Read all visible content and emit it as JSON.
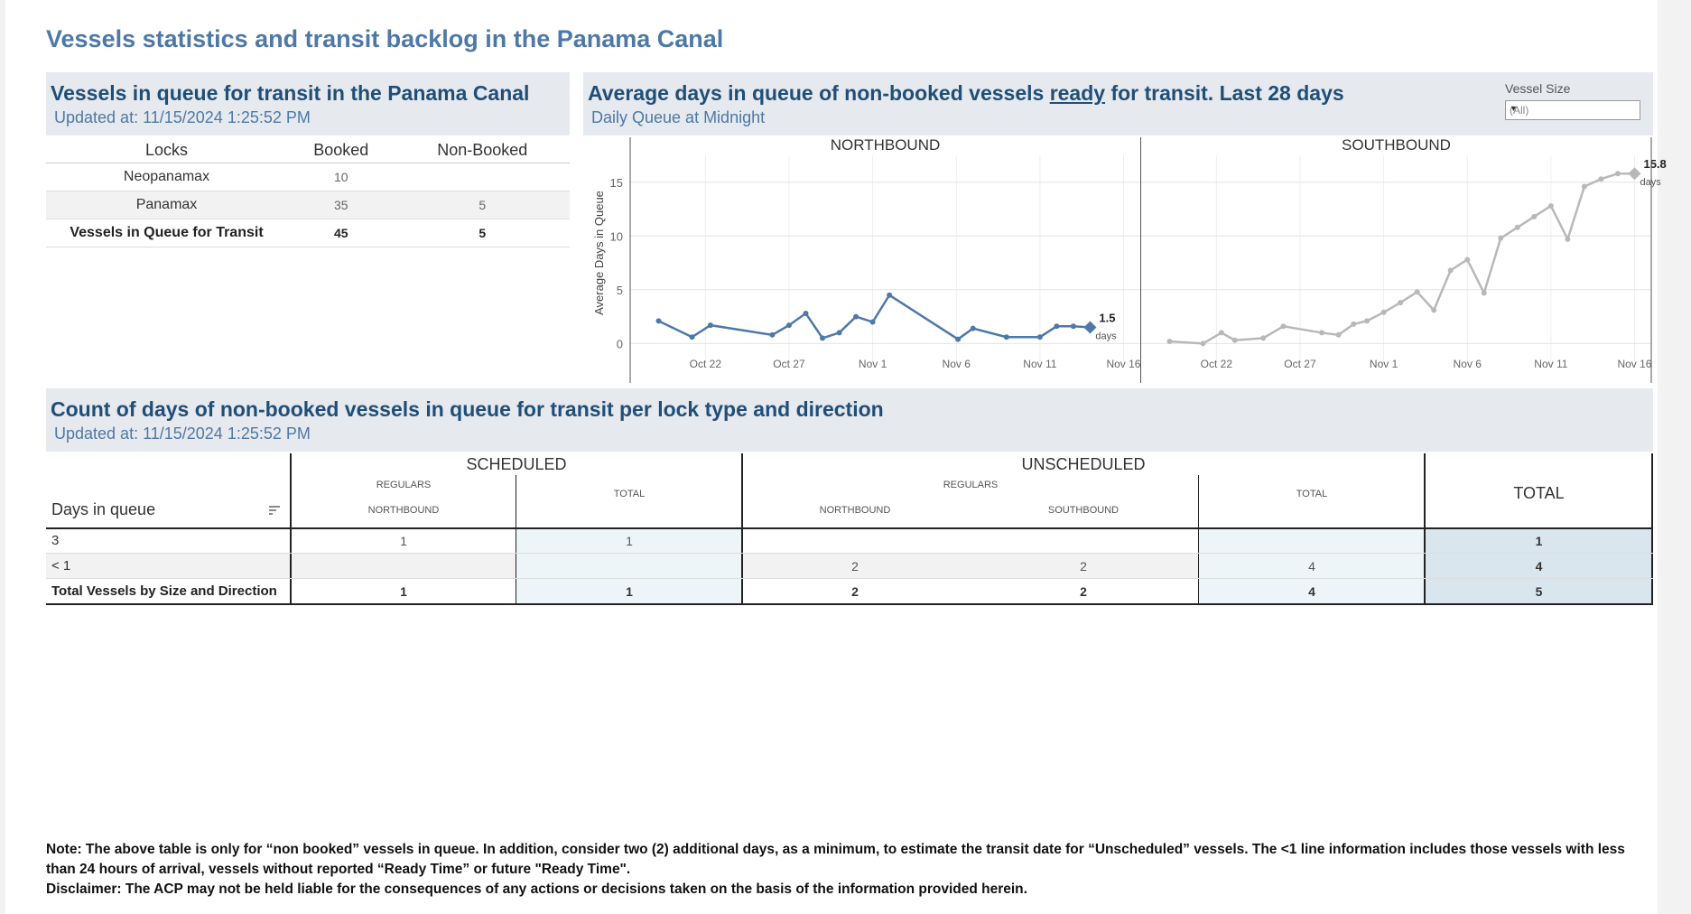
{
  "title": "Vessels statistics and transit backlog in the Panama Canal",
  "queue_panel": {
    "title": "Vessels in queue for transit in the Panama Canal",
    "updated": "Updated at:  11/15/2024 1:25:52 PM",
    "headers": [
      "Locks",
      "Booked",
      "Non-Booked"
    ],
    "rows": [
      {
        "lock": "Neopanamax",
        "booked": "10",
        "non_booked": ""
      },
      {
        "lock": "Panamax",
        "booked": "35",
        "non_booked": "5"
      },
      {
        "lock": "Vessels in Queue for Transit",
        "booked": "45",
        "non_booked": "5"
      }
    ]
  },
  "days_panel": {
    "title_before": "Average days in queue of non-booked vessels ",
    "title_underlined": "ready",
    "title_after": " for transit. Last 28 days",
    "subtitle": "Daily Queue at Midnight",
    "filter_label": "Vessel Size",
    "filter_value": "(All)"
  },
  "chart_data": {
    "type": "line",
    "ylabel": "Average Days in Queue",
    "yticks": [
      "0",
      "5",
      "10",
      "15"
    ],
    "ylim": [
      -3.5,
      17.5
    ],
    "xticks": [
      "Oct 22",
      "Oct 27",
      "Nov 1",
      "Nov 6",
      "Nov 11",
      "Nov 16"
    ],
    "xtick_day": [
      22,
      27,
      32,
      37,
      42,
      47
    ],
    "xlim": [
      17.5,
      48
    ],
    "grid": true,
    "panels": [
      {
        "name": "NORTHBOUND",
        "color": "#4e79a7",
        "x": [
          19.2,
          21.2,
          22.3,
          26,
          27,
          28,
          29,
          30,
          31,
          32,
          33,
          37.1,
          38,
          40,
          42,
          43,
          44,
          45
        ],
        "y": [
          2.1,
          0.6,
          1.7,
          0.8,
          1.7,
          2.8,
          0.5,
          1.0,
          2.5,
          2.0,
          4.5,
          0.4,
          1.4,
          0.6,
          0.6,
          1.6,
          1.6,
          1.5
        ],
        "last_label": "1.5",
        "unit": "days"
      },
      {
        "name": "SOUTHBOUND",
        "color": "#b8b8b8",
        "x": [
          19.2,
          21.2,
          22.3,
          23.1,
          24.8,
          26,
          28.3,
          29.3,
          30.2,
          31,
          32,
          33,
          34,
          35,
          36,
          37,
          38,
          39,
          40,
          41,
          42,
          43,
          44,
          45,
          46,
          47
        ],
        "y": [
          0.2,
          0.0,
          1.0,
          0.3,
          0.5,
          1.6,
          1.0,
          0.8,
          1.8,
          2.1,
          2.9,
          3.8,
          4.8,
          3.1,
          6.8,
          7.8,
          4.7,
          9.8,
          10.8,
          11.8,
          12.8,
          9.7,
          14.6,
          15.3,
          15.8,
          15.8
        ],
        "last_label": "15.8",
        "unit": "days"
      }
    ]
  },
  "count_panel": {
    "title": "Count of days of non-booked vessels in queue for transit per lock type and direction",
    "updated": "Updated at:  11/15/2024 1:25:52 PM",
    "row_header": "Days in queue",
    "groups": {
      "scheduled": "SCHEDULED",
      "unscheduled": "UNSCHEDULED",
      "total": "TOTAL"
    },
    "subheaders": {
      "regulars": "REGULARS",
      "northbound": "NORTHBOUND",
      "southbound": "SOUTHBOUND",
      "total": "TOTAL"
    },
    "rows": [
      {
        "label": "3",
        "values": [
          "1",
          "1",
          "",
          "",
          "",
          "1"
        ]
      },
      {
        "label": "< 1",
        "values": [
          "",
          "",
          "2",
          "2",
          "4",
          "4"
        ]
      },
      {
        "label": "Total Vessels by Size and Direction",
        "values": [
          "1",
          "1",
          "2",
          "2",
          "4",
          "5"
        ]
      }
    ]
  },
  "note_lines": [
    "Note:  The above table is only for “non booked” vessels in queue. In addition, consider two (2) additional days, as a minimum, to estimate the transit date for “Unscheduled” vessels.  The <1 line information includes those vessels with less than 24 hours of arrival, vessels without reported “Ready Time” or future \"Ready Time\".",
    "Disclaimer: The ACP may not be held liable for the consequences of any actions or decisions taken on the basis of the information provided herein."
  ]
}
